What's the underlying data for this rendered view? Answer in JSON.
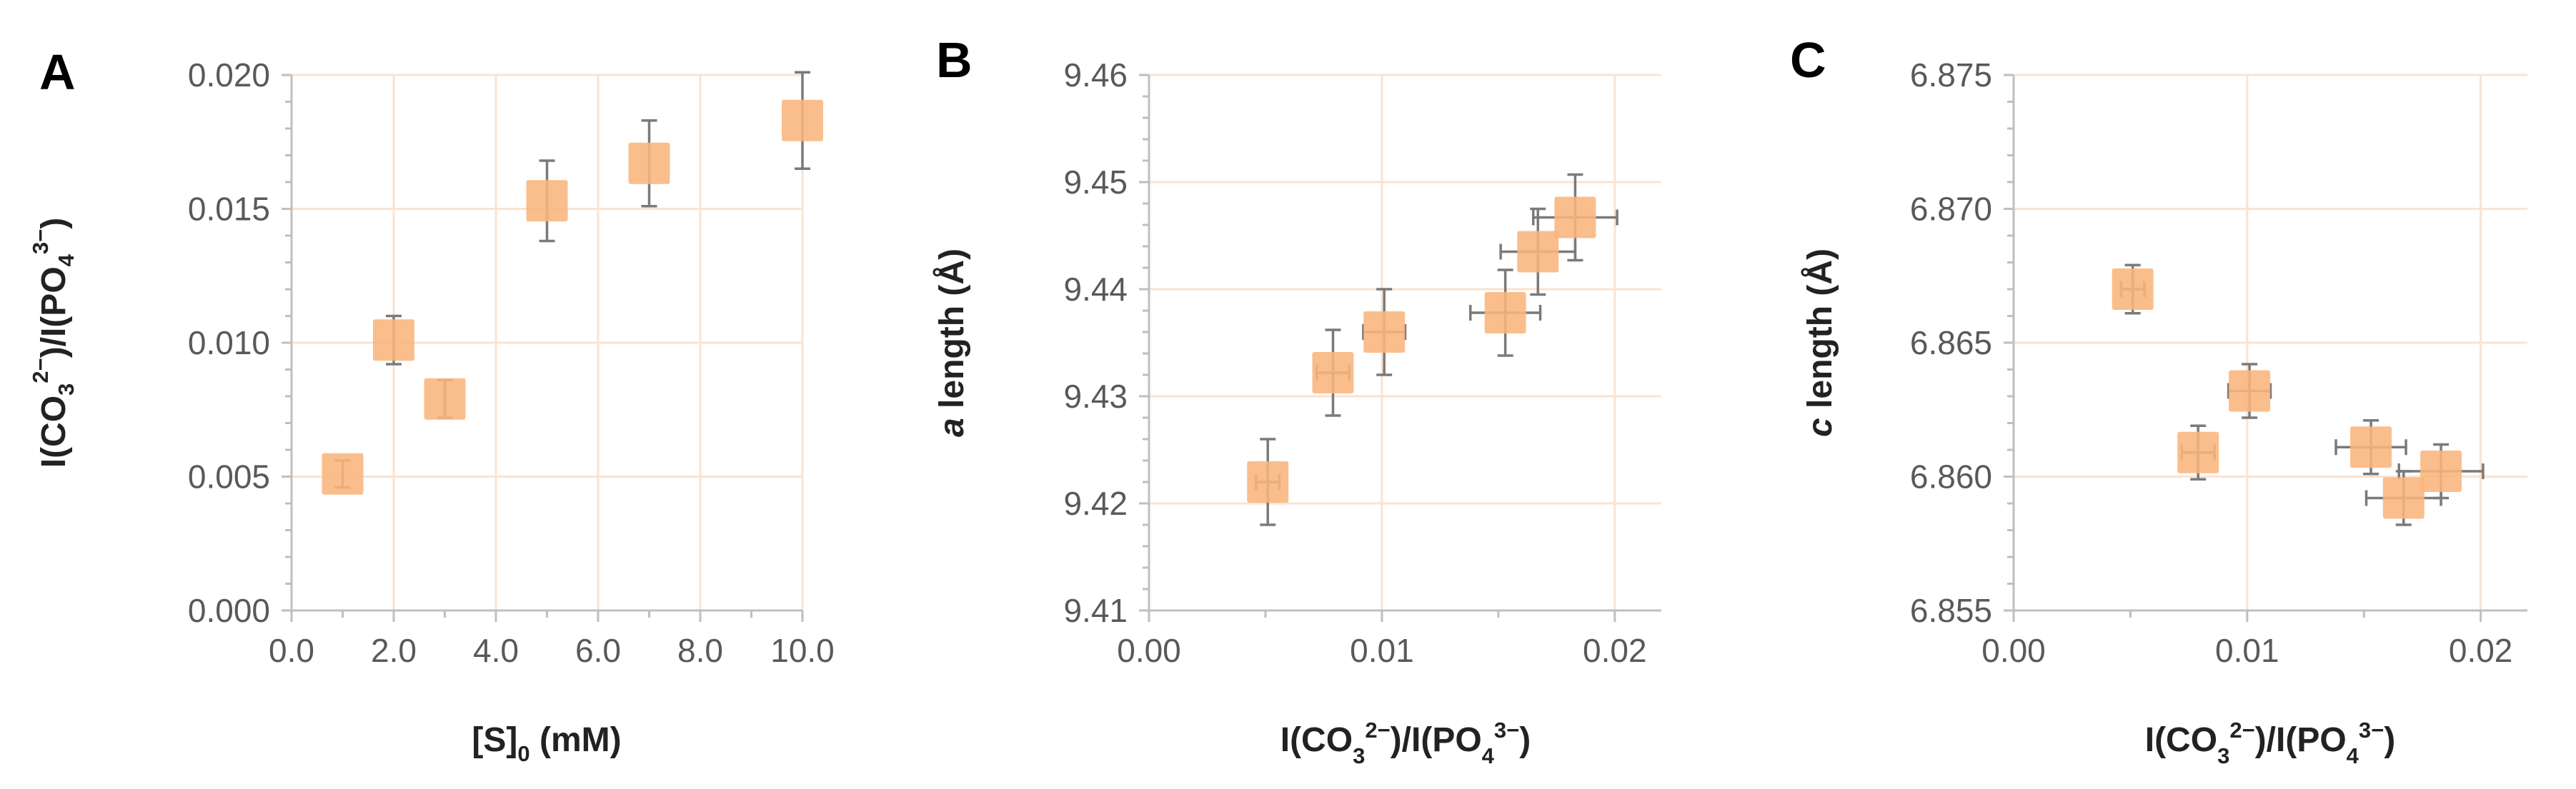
{
  "chart_data": [
    {
      "type": "scatter",
      "panel": "A",
      "xlabel_main": "[S]",
      "xlabel_sub": "0",
      "xlabel_tail": " (mM)",
      "ylabel_parts": [
        "I(CO",
        "3",
        "2−",
        ")/I(PO",
        "4",
        "3−",
        ")"
      ],
      "xlim": [
        0,
        10
      ],
      "ylim": [
        0,
        0.02
      ],
      "xticks": [
        0,
        2,
        4,
        6,
        8,
        10
      ],
      "xtick_labels": [
        "0.0",
        "2.0",
        "4.0",
        "6.0",
        "8.0",
        "10.0"
      ],
      "xminor_ticks": [
        1,
        3,
        5,
        7,
        9
      ],
      "yticks": [
        0,
        0.005,
        0.01,
        0.015,
        0.02
      ],
      "ytick_labels": [
        "0.000",
        "0.005",
        "0.010",
        "0.015",
        "0.020"
      ],
      "x": [
        1,
        2,
        3,
        5,
        7,
        10
      ],
      "y": [
        0.0051,
        0.0101,
        0.0079,
        0.0153,
        0.0167,
        0.0183
      ],
      "yerr": [
        0.0005,
        0.0009,
        0.0007,
        0.0015,
        0.0016,
        0.0018
      ],
      "xerr": [
        0,
        0,
        0,
        0,
        0,
        0
      ],
      "color": "#f9b57c"
    },
    {
      "type": "scatter",
      "panel": "B",
      "xlabel_parts": [
        "I(CO",
        "3",
        "2−",
        ")/I(PO",
        "4",
        "3−",
        ")"
      ],
      "ylabel_italic": "a",
      "ylabel_rest": " length (Å)",
      "xlim": [
        0,
        0.022
      ],
      "ylim": [
        9.41,
        9.46
      ],
      "xticks": [
        0,
        0.01,
        0.02
      ],
      "xtick_labels": [
        "0.00",
        "0.01",
        "0.02"
      ],
      "xminor_ticks": [
        0.005,
        0.015
      ],
      "yticks": [
        9.41,
        9.42,
        9.43,
        9.44,
        9.45,
        9.46
      ],
      "ytick_labels": [
        "9.41",
        "9.42",
        "9.43",
        "9.44",
        "9.45",
        "9.46"
      ],
      "x": [
        0.0051,
        0.0079,
        0.0101,
        0.0153,
        0.0167,
        0.0183
      ],
      "y": [
        9.422,
        9.4322,
        9.436,
        9.4378,
        9.4435,
        9.4467
      ],
      "yerr": [
        0.004,
        0.004,
        0.004,
        0.004,
        0.004,
        0.004
      ],
      "xerr": [
        0.0005,
        0.0007,
        0.0009,
        0.0015,
        0.0016,
        0.0018
      ],
      "color": "#f9b57c"
    },
    {
      "type": "scatter",
      "panel": "C",
      "xlabel_parts": [
        "I(CO",
        "3",
        "2−",
        ")/I(PO",
        "4",
        "3−",
        ")"
      ],
      "ylabel_italic": "c",
      "ylabel_rest": " length (Å)",
      "xlim": [
        0,
        0.022
      ],
      "ylim": [
        6.855,
        6.875
      ],
      "xticks": [
        0,
        0.01,
        0.02
      ],
      "xtick_labels": [
        "0.00",
        "0.01",
        "0.02"
      ],
      "xminor_ticks": [
        0.005,
        0.015
      ],
      "yticks": [
        6.855,
        6.86,
        6.865,
        6.87,
        6.875
      ],
      "ytick_labels": [
        "6.855",
        "6.860",
        "6.865",
        "6.870",
        "6.875"
      ],
      "x": [
        0.0051,
        0.0079,
        0.0101,
        0.0153,
        0.0167,
        0.0183
      ],
      "y": [
        6.867,
        6.8609,
        6.8632,
        6.8611,
        6.8592,
        6.8602
      ],
      "yerr": [
        0.0009,
        0.001,
        0.001,
        0.001,
        0.001,
        0.001
      ],
      "xerr": [
        0.0005,
        0.0007,
        0.0009,
        0.0015,
        0.0016,
        0.0018
      ],
      "color": "#f9b57c"
    }
  ]
}
